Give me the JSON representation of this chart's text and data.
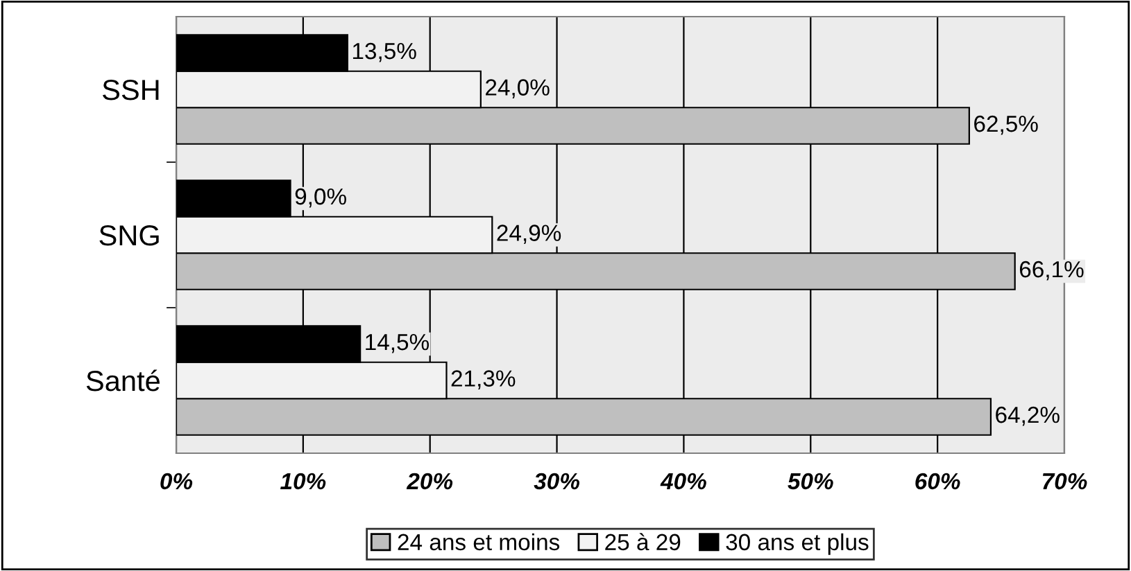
{
  "chart_data": {
    "type": "bar",
    "orientation": "horizontal",
    "categories": [
      "SSH",
      "SNG",
      "Santé"
    ],
    "series": [
      {
        "name": "24 ans et moins",
        "color": "#bfbfbf",
        "values": [
          62.5,
          66.1,
          64.2
        ],
        "value_labels": [
          "62,5%",
          "66,1%",
          "64,2%"
        ]
      },
      {
        "name": "25 à 29",
        "color": "#f2f2f2",
        "values": [
          24.0,
          24.9,
          21.3
        ],
        "value_labels": [
          "24,0%",
          "24,9%",
          "21,3%"
        ]
      },
      {
        "name": "30 ans et plus",
        "color": "#000000",
        "values": [
          13.5,
          9.0,
          14.5
        ],
        "value_labels": [
          "13,5%",
          "9,0%",
          "14,5%"
        ]
      }
    ],
    "xlim": [
      0,
      70
    ],
    "xticks": [
      {
        "value": 0,
        "label": "0%"
      },
      {
        "value": 10,
        "label": "10%"
      },
      {
        "value": 20,
        "label": "20%"
      },
      {
        "value": 30,
        "label": "30%"
      },
      {
        "value": 40,
        "label": "40%"
      },
      {
        "value": 50,
        "label": "50%"
      },
      {
        "value": 60,
        "label": "60%"
      },
      {
        "value": 70,
        "label": "70%"
      }
    ],
    "grid": "x",
    "legend": "bottom"
  }
}
